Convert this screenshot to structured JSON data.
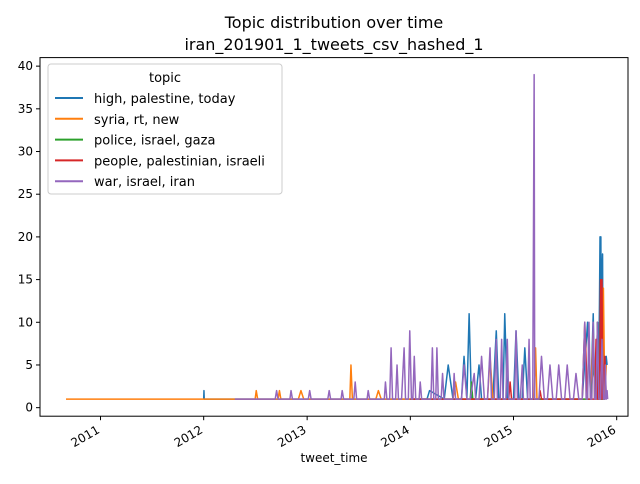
{
  "chart_data": {
    "type": "line",
    "title_line1": "Topic distribution over time",
    "title_line2": "iran_201901_1_tweets_csv_hashed_1",
    "xlabel": "tweet_time",
    "ylabel": "",
    "xlim": [
      "2010-06-01",
      "2016-02-10"
    ],
    "ylim": [
      -1,
      41
    ],
    "yticks": [
      0,
      5,
      10,
      15,
      20,
      25,
      30,
      35,
      40
    ],
    "xticks": [
      {
        "label": "2011",
        "date": "2011-01-01"
      },
      {
        "label": "2012",
        "date": "2012-01-01"
      },
      {
        "label": "2013",
        "date": "2013-01-01"
      },
      {
        "label": "2014",
        "date": "2014-01-01"
      },
      {
        "label": "2015",
        "date": "2015-01-01"
      },
      {
        "label": "2016",
        "date": "2016-01-01"
      }
    ],
    "legend": {
      "title": "topic",
      "position": "upper left"
    },
    "grid": false,
    "series": [
      {
        "name": "high, palestine, today",
        "color": "#1f77b4",
        "points": [
          [
            "2012-01-01",
            1
          ],
          [
            "2012-01-02",
            2
          ],
          [
            "2012-01-03",
            1
          ],
          [
            "2014-03-01",
            1
          ],
          [
            "2014-03-10",
            2
          ],
          [
            "2014-05-01",
            1
          ],
          [
            "2014-05-15",
            5
          ],
          [
            "2014-06-01",
            1
          ],
          [
            "2014-07-01",
            1
          ],
          [
            "2014-07-10",
            6
          ],
          [
            "2014-07-20",
            1
          ],
          [
            "2014-07-28",
            11
          ],
          [
            "2014-08-05",
            1
          ],
          [
            "2014-08-20",
            1
          ],
          [
            "2014-09-01",
            5
          ],
          [
            "2014-09-10",
            1
          ],
          [
            "2014-10-20",
            1
          ],
          [
            "2014-11-01",
            9
          ],
          [
            "2014-11-10",
            1
          ],
          [
            "2014-11-25",
            1
          ],
          [
            "2014-12-01",
            11
          ],
          [
            "2014-12-10",
            1
          ],
          [
            "2015-01-01",
            1
          ],
          [
            "2015-01-10",
            9
          ],
          [
            "2015-01-20",
            1
          ],
          [
            "2015-02-01",
            1
          ],
          [
            "2015-02-10",
            7
          ],
          [
            "2015-02-20",
            1
          ],
          [
            "2015-09-01",
            1
          ],
          [
            "2015-09-20",
            10
          ],
          [
            "2015-10-01",
            1
          ],
          [
            "2015-10-10",
            11
          ],
          [
            "2015-10-15",
            1
          ],
          [
            "2015-10-20",
            1
          ],
          [
            "2015-10-25",
            10
          ],
          [
            "2015-10-28",
            1
          ],
          [
            "2015-11-01",
            12
          ],
          [
            "2015-11-03",
            20
          ],
          [
            "2015-11-06",
            20
          ],
          [
            "2015-11-08",
            1
          ],
          [
            "2015-11-10",
            15
          ],
          [
            "2015-11-12",
            18
          ],
          [
            "2015-11-14",
            1
          ],
          [
            "2015-11-18",
            5
          ],
          [
            "2015-11-20",
            1
          ],
          [
            "2015-11-25",
            6
          ],
          [
            "2015-11-28",
            5
          ]
        ]
      },
      {
        "name": "syria, rt, new",
        "color": "#ff7f0e",
        "points": [
          [
            "2010-09-01",
            1
          ],
          [
            "2011-09-01",
            1
          ],
          [
            "2012-01-01",
            1
          ],
          [
            "2012-07-01",
            1
          ],
          [
            "2012-07-05",
            2
          ],
          [
            "2012-07-10",
            1
          ],
          [
            "2012-09-20",
            1
          ],
          [
            "2012-09-25",
            2
          ],
          [
            "2012-09-30",
            1
          ],
          [
            "2012-12-01",
            1
          ],
          [
            "2012-12-10",
            2
          ],
          [
            "2012-12-20",
            1
          ],
          [
            "2013-06-01",
            1
          ],
          [
            "2013-06-05",
            5
          ],
          [
            "2013-06-10",
            1
          ],
          [
            "2013-09-01",
            1
          ],
          [
            "2013-09-10",
            2
          ],
          [
            "2013-09-20",
            1
          ],
          [
            "2014-06-01",
            1
          ],
          [
            "2014-06-10",
            3
          ],
          [
            "2014-06-20",
            1
          ],
          [
            "2014-10-01",
            1
          ],
          [
            "2014-10-10",
            6
          ],
          [
            "2014-10-20",
            1
          ],
          [
            "2015-03-15",
            1
          ],
          [
            "2015-03-20",
            7
          ],
          [
            "2015-03-25",
            1
          ],
          [
            "2015-10-01",
            1
          ],
          [
            "2015-10-10",
            9
          ],
          [
            "2015-10-15",
            1
          ],
          [
            "2015-11-10",
            1
          ],
          [
            "2015-11-15",
            14
          ],
          [
            "2015-11-20",
            1
          ],
          [
            "2015-11-25",
            5
          ]
        ]
      },
      {
        "name": "police, israel, gaza",
        "color": "#2ca02c",
        "points": [
          [
            "2014-01-01",
            1
          ],
          [
            "2014-08-01",
            1
          ],
          [
            "2014-08-05",
            3
          ],
          [
            "2014-08-10",
            1
          ],
          [
            "2015-10-01",
            1
          ],
          [
            "2015-10-10",
            5
          ],
          [
            "2015-10-20",
            1
          ],
          [
            "2015-10-25",
            10
          ],
          [
            "2015-10-30",
            1
          ],
          [
            "2015-11-20",
            1
          ]
        ]
      },
      {
        "name": "people, palestinian, israeli",
        "color": "#d62728",
        "points": [
          [
            "2014-01-01",
            1
          ],
          [
            "2014-12-15",
            1
          ],
          [
            "2014-12-20",
            3
          ],
          [
            "2014-12-25",
            1
          ],
          [
            "2015-04-01",
            1
          ],
          [
            "2015-04-05",
            2
          ],
          [
            "2015-04-10",
            1
          ],
          [
            "2015-09-01",
            1
          ],
          [
            "2015-09-10",
            10
          ],
          [
            "2015-09-20",
            1
          ],
          [
            "2015-10-15",
            1
          ],
          [
            "2015-10-20",
            8
          ],
          [
            "2015-10-25",
            1
          ],
          [
            "2015-11-01",
            1
          ],
          [
            "2015-11-05",
            15
          ],
          [
            "2015-11-08",
            1
          ],
          [
            "2015-11-10",
            15
          ],
          [
            "2015-11-13",
            1
          ],
          [
            "2015-11-20",
            6
          ],
          [
            "2015-11-25",
            1
          ]
        ]
      },
      {
        "name": "war, israel, iran",
        "color": "#9467bd",
        "points": [
          [
            "2012-04-20",
            1
          ],
          [
            "2012-09-10",
            1
          ],
          [
            "2012-09-15",
            2
          ],
          [
            "2012-09-20",
            1
          ],
          [
            "2012-11-01",
            1
          ],
          [
            "2012-11-05",
            2
          ],
          [
            "2012-11-10",
            1
          ],
          [
            "2013-01-05",
            1
          ],
          [
            "2013-01-10",
            2
          ],
          [
            "2013-01-15",
            1
          ],
          [
            "2013-03-15",
            1
          ],
          [
            "2013-03-20",
            2
          ],
          [
            "2013-03-25",
            1
          ],
          [
            "2013-05-01",
            1
          ],
          [
            "2013-05-05",
            2
          ],
          [
            "2013-05-10",
            1
          ],
          [
            "2013-06-15",
            1
          ],
          [
            "2013-06-20",
            3
          ],
          [
            "2013-06-25",
            1
          ],
          [
            "2013-08-01",
            1
          ],
          [
            "2013-08-05",
            2
          ],
          [
            "2013-08-10",
            1
          ],
          [
            "2013-10-01",
            1
          ],
          [
            "2013-10-05",
            3
          ],
          [
            "2013-10-10",
            1
          ],
          [
            "2013-10-20",
            1
          ],
          [
            "2013-10-25",
            7
          ],
          [
            "2013-10-30",
            1
          ],
          [
            "2013-11-10",
            1
          ],
          [
            "2013-11-15",
            5
          ],
          [
            "2013-11-20",
            1
          ],
          [
            "2013-12-01",
            1
          ],
          [
            "2013-12-10",
            7
          ],
          [
            "2013-12-15",
            1
          ],
          [
            "2013-12-25",
            1
          ],
          [
            "2013-12-30",
            9
          ],
          [
            "2014-01-05",
            1
          ],
          [
            "2014-01-10",
            1
          ],
          [
            "2014-01-15",
            6
          ],
          [
            "2014-01-20",
            1
          ],
          [
            "2014-02-01",
            1
          ],
          [
            "2014-02-05",
            3
          ],
          [
            "2014-02-10",
            1
          ],
          [
            "2014-03-15",
            1
          ],
          [
            "2014-03-20",
            7
          ],
          [
            "2014-03-25",
            1
          ],
          [
            "2014-04-01",
            1
          ],
          [
            "2014-04-05",
            7
          ],
          [
            "2014-04-10",
            1
          ],
          [
            "2014-04-20",
            1
          ],
          [
            "2014-04-25",
            4
          ],
          [
            "2014-04-30",
            1
          ],
          [
            "2014-06-01",
            1
          ],
          [
            "2014-06-05",
            4
          ],
          [
            "2014-06-10",
            1
          ],
          [
            "2014-07-01",
            1
          ],
          [
            "2014-07-10",
            5
          ],
          [
            "2014-07-20",
            1
          ],
          [
            "2014-08-01",
            1
          ],
          [
            "2014-08-15",
            4
          ],
          [
            "2014-08-20",
            1
          ],
          [
            "2014-09-01",
            1
          ],
          [
            "2014-09-10",
            6
          ],
          [
            "2014-09-20",
            1
          ],
          [
            "2014-10-01",
            1
          ],
          [
            "2014-10-10",
            7
          ],
          [
            "2014-10-15",
            1
          ],
          [
            "2014-10-25",
            1
          ],
          [
            "2014-11-01",
            8
          ],
          [
            "2014-11-05",
            1
          ],
          [
            "2014-11-15",
            1
          ],
          [
            "2014-11-20",
            8
          ],
          [
            "2014-11-25",
            1
          ],
          [
            "2014-12-05",
            1
          ],
          [
            "2014-12-10",
            8
          ],
          [
            "2014-12-15",
            1
          ],
          [
            "2015-01-05",
            1
          ],
          [
            "2015-01-10",
            9
          ],
          [
            "2015-01-15",
            1
          ],
          [
            "2015-01-25",
            1
          ],
          [
            "2015-02-01",
            5
          ],
          [
            "2015-02-05",
            1
          ],
          [
            "2015-02-20",
            1
          ],
          [
            "2015-02-25",
            8
          ],
          [
            "2015-03-01",
            1
          ],
          [
            "2015-03-10",
            1
          ],
          [
            "2015-03-15",
            39
          ],
          [
            "2015-03-17",
            1
          ],
          [
            "2015-04-01",
            1
          ],
          [
            "2015-04-10",
            6
          ],
          [
            "2015-04-20",
            1
          ],
          [
            "2015-05-01",
            1
          ],
          [
            "2015-05-10",
            5
          ],
          [
            "2015-05-20",
            1
          ],
          [
            "2015-06-01",
            1
          ],
          [
            "2015-06-10",
            5
          ],
          [
            "2015-06-20",
            1
          ],
          [
            "2015-07-01",
            1
          ],
          [
            "2015-07-10",
            5
          ],
          [
            "2015-07-20",
            1
          ],
          [
            "2015-08-01",
            1
          ],
          [
            "2015-08-10",
            4
          ],
          [
            "2015-08-20",
            1
          ],
          [
            "2015-09-01",
            1
          ],
          [
            "2015-09-10",
            10
          ],
          [
            "2015-09-15",
            1
          ],
          [
            "2015-09-20",
            1
          ],
          [
            "2015-09-25",
            10
          ],
          [
            "2015-09-30",
            1
          ],
          [
            "2015-10-05",
            1
          ],
          [
            "2015-10-10",
            10
          ],
          [
            "2015-10-15",
            1
          ],
          [
            "2015-10-20",
            1
          ],
          [
            "2015-10-25",
            10
          ],
          [
            "2015-10-30",
            1
          ],
          [
            "2015-11-05",
            1
          ],
          [
            "2015-11-10",
            8
          ],
          [
            "2015-11-15",
            1
          ],
          [
            "2015-11-20",
            1
          ],
          [
            "2015-11-22",
            5
          ],
          [
            "2015-11-25",
            1
          ],
          [
            "2015-11-28",
            2
          ],
          [
            "2015-11-30",
            1
          ]
        ]
      }
    ]
  }
}
